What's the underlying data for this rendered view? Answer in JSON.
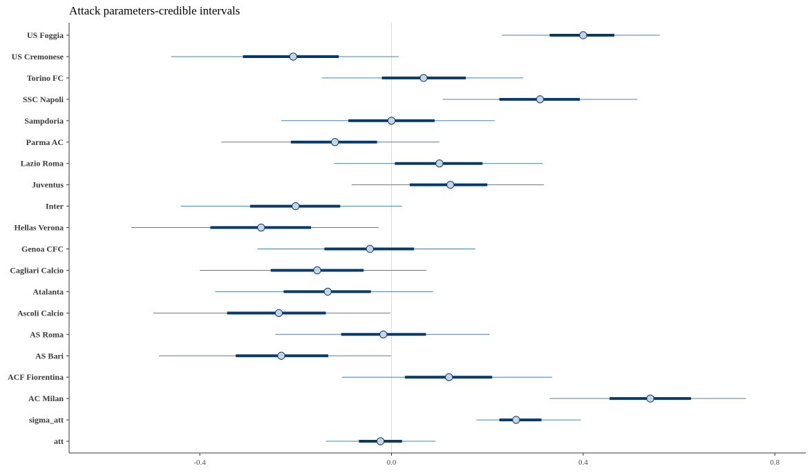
{
  "chart_data": {
    "type": "interval",
    "title": "Attack parameters-credible intervals",
    "xlabel": "",
    "ylabel": "",
    "xlim": [
      -0.66,
      0.87
    ],
    "xticks": [
      -0.4,
      0.0,
      0.4,
      0.8
    ],
    "xtick_labels": [
      "-0.4",
      "0.0",
      "0.4",
      "0.8"
    ],
    "reference_line": 0.0,
    "grid": false,
    "colors": {
      "outer_line": "#4a7fa8",
      "inner_line": "#053a6b",
      "point_fill": "#c7d4e3",
      "point_stroke": "#053a6b",
      "reference": "#d9d9d9",
      "axis": "#333333"
    },
    "parameters": [
      {
        "label": "US Foggia",
        "ll": 0.23,
        "l": 0.33,
        "m": 0.4,
        "h": 0.465,
        "hh": 0.56
      },
      {
        "label": "US Cremonese",
        "ll": -0.46,
        "l": -0.31,
        "m": -0.205,
        "h": -0.11,
        "hh": 0.015
      },
      {
        "label": "Torino FC",
        "ll": -0.145,
        "l": -0.02,
        "m": 0.067,
        "h": 0.155,
        "hh": 0.275
      },
      {
        "label": "SSC Napoli",
        "ll": 0.107,
        "l": 0.225,
        "m": 0.31,
        "h": 0.393,
        "hh": 0.513
      },
      {
        "label": "Sampdoria",
        "ll": -0.23,
        "l": -0.09,
        "m": 0.0,
        "h": 0.09,
        "hh": 0.215
      },
      {
        "label": "Parma AC",
        "ll": -0.355,
        "l": -0.21,
        "m": -0.118,
        "h": -0.03,
        "hh": 0.1
      },
      {
        "label": "Lazio Roma",
        "ll": -0.12,
        "l": 0.007,
        "m": 0.1,
        "h": 0.19,
        "hh": 0.315
      },
      {
        "label": "Juventus",
        "ll": -0.083,
        "l": 0.038,
        "m": 0.123,
        "h": 0.2,
        "hh": 0.318
      },
      {
        "label": "Inter",
        "ll": -0.44,
        "l": -0.295,
        "m": -0.2,
        "h": -0.107,
        "hh": 0.022
      },
      {
        "label": "Hellas Verona",
        "ll": -0.543,
        "l": -0.378,
        "m": -0.272,
        "h": -0.168,
        "hh": -0.027
      },
      {
        "label": "Genoa CFC",
        "ll": -0.28,
        "l": -0.14,
        "m": -0.045,
        "h": 0.047,
        "hh": 0.175
      },
      {
        "label": "Cagliari Calcio",
        "ll": -0.4,
        "l": -0.252,
        "m": -0.155,
        "h": -0.058,
        "hh": 0.073
      },
      {
        "label": "Atalanta",
        "ll": -0.368,
        "l": -0.225,
        "m": -0.133,
        "h": -0.043,
        "hh": 0.087
      },
      {
        "label": "Ascoli Calcio",
        "ll": -0.497,
        "l": -0.343,
        "m": -0.235,
        "h": -0.137,
        "hh": -0.002
      },
      {
        "label": "AS Roma",
        "ll": -0.242,
        "l": -0.105,
        "m": -0.017,
        "h": 0.072,
        "hh": 0.205
      },
      {
        "label": "AS Bari",
        "ll": -0.485,
        "l": -0.325,
        "m": -0.23,
        "h": -0.132,
        "hh": -0.001
      },
      {
        "label": "ACF Fiorentina",
        "ll": -0.103,
        "l": 0.028,
        "m": 0.12,
        "h": 0.21,
        "hh": 0.335
      },
      {
        "label": "AC Milan",
        "ll": 0.33,
        "l": 0.455,
        "m": 0.54,
        "h": 0.625,
        "hh": 0.74
      },
      {
        "label": "sigma_att",
        "ll": 0.177,
        "l": 0.225,
        "m": 0.26,
        "h": 0.313,
        "hh": 0.395
      },
      {
        "label": "att",
        "ll": -0.137,
        "l": -0.068,
        "m": -0.023,
        "h": 0.022,
        "hh": 0.092
      }
    ]
  }
}
